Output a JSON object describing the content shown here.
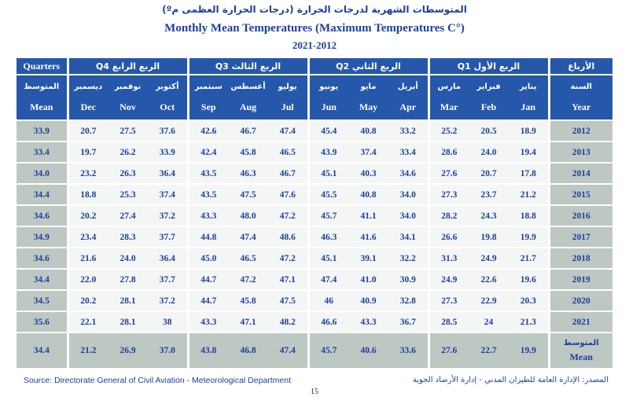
{
  "titles": {
    "arabic": "المتوسطات الشهرية لدرجات الحرارة (درجات الحرارة العظمى مº)",
    "english": "Monthly Mean Temperatures (Maximum Temperatures C°)",
    "period": "2021-2012"
  },
  "colors": {
    "header_blue": "#2557ab",
    "text_navy": "#1d3f9e",
    "gray_column_bg": "#bdc8c3",
    "data_cell_bg": "#f3f6f4"
  },
  "table": {
    "corner_label": "Quarters",
    "corner_label_ar": "الأرباع",
    "mean_col": {
      "ar": "المتوسط",
      "en": "Mean"
    },
    "year_col": {
      "ar": "السنة",
      "en": "Year"
    },
    "quarter_groups": [
      {
        "id": "q4",
        "en": "Q4",
        "ar": "الربع الرابع",
        "months": [
          {
            "en": "Dec",
            "ar": "ديسمبر"
          },
          {
            "en": "Nov",
            "ar": "نوفمبر"
          },
          {
            "en": "Oct",
            "ar": "أكتوبر"
          }
        ]
      },
      {
        "id": "q3",
        "en": "Q3",
        "ar": "الربع الثالث",
        "months": [
          {
            "en": "Sep",
            "ar": "سبتمبر"
          },
          {
            "en": "Aug",
            "ar": "أغسطس"
          },
          {
            "en": "Jul",
            "ar": "يوليو"
          }
        ]
      },
      {
        "id": "q2",
        "en": "Q2",
        "ar": "الربع الثاني",
        "months": [
          {
            "en": "Jun",
            "ar": "يونيو"
          },
          {
            "en": "May",
            "ar": "مايو"
          },
          {
            "en": "Apr",
            "ar": "أبريل"
          }
        ]
      },
      {
        "id": "q1",
        "en": "Q1",
        "ar": "الربع الأول",
        "months": [
          {
            "en": "Mar",
            "ar": "مارس"
          },
          {
            "en": "Feb",
            "ar": "فبراير"
          },
          {
            "en": "Jan",
            "ar": "يناير"
          }
        ]
      }
    ],
    "rows": [
      {
        "year": "2012",
        "mean": "33.9",
        "values": [
          "20.7",
          "27.5",
          "37.6",
          "42.6",
          "46.7",
          "47.4",
          "45.4",
          "40.8",
          "33.2",
          "25.2",
          "20.5",
          "18.9"
        ]
      },
      {
        "year": "2013",
        "mean": "33.4",
        "values": [
          "19.7",
          "26.2",
          "33.9",
          "42.4",
          "45.8",
          "46.5",
          "43.9",
          "37.4",
          "33.4",
          "28.6",
          "24.0",
          "19.4"
        ]
      },
      {
        "year": "2014",
        "mean": "34.0",
        "values": [
          "23.2",
          "26.3",
          "36.4",
          "43.5",
          "46.3",
          "46.7",
          "45.1",
          "40.3",
          "34.6",
          "27.6",
          "20.7",
          "17.8"
        ]
      },
      {
        "year": "2015",
        "mean": "34.4",
        "values": [
          "18.8",
          "25.3",
          "37.4",
          "43.5",
          "47.5",
          "47.6",
          "45.5",
          "40.8",
          "34.0",
          "27.3",
          "23.7",
          "21.2"
        ]
      },
      {
        "year": "2016",
        "mean": "34.6",
        "values": [
          "20.2",
          "27.4",
          "37.2",
          "43.3",
          "48.0",
          "47.2",
          "45.7",
          "41.1",
          "34.0",
          "28.2",
          "24.3",
          "18.8"
        ]
      },
      {
        "year": "2017",
        "mean": "34.9",
        "values": [
          "23.4",
          "28.3",
          "37.7",
          "44.8",
          "47.4",
          "48.6",
          "46.3",
          "41.6",
          "34.1",
          "26.6",
          "19.8",
          "19.9"
        ]
      },
      {
        "year": "2018",
        "mean": "34.6",
        "values": [
          "21.6",
          "24.0",
          "36.4",
          "45.0",
          "46.5",
          "47.2",
          "45.1",
          "39.1",
          "32.2",
          "31.3",
          "24.9",
          "21.7"
        ]
      },
      {
        "year": "2019",
        "mean": "34.4",
        "values": [
          "22.0",
          "27.8",
          "37.7",
          "44.7",
          "47.2",
          "47.1",
          "47.4",
          "41.0",
          "30.9",
          "24.9",
          "22.6",
          "19.6"
        ]
      },
      {
        "year": "2020",
        "mean": "34.5",
        "values": [
          "20.2",
          "28.1",
          "37.2",
          "44.7",
          "45.8",
          "47.5",
          "46",
          "40.9",
          "32.8",
          "27.3",
          "22.9",
          "20.3"
        ]
      },
      {
        "year": "2021",
        "mean": "35.6",
        "values": [
          "22.1",
          "28.1",
          "38",
          "43.3",
          "47.1",
          "48.2",
          "46.6",
          "43.3",
          "36.7",
          "28.5",
          "24",
          "21.3"
        ]
      }
    ],
    "mean_row": {
      "label_ar": "المتوسط",
      "label_en": "Mean",
      "mean": "34.4",
      "values": [
        "21.2",
        "26.9",
        "37.0",
        "43.8",
        "46.8",
        "47.4",
        "45.7",
        "40.6",
        "33.6",
        "27.6",
        "22.7",
        "19.9"
      ]
    }
  },
  "footer": {
    "source_en": "Source: Directorate General of Civil Aviation - Meteorological Department",
    "source_ar": "المصدر: الإدارة العامة للطيران المدني - إدارة الأرصاد الجوية",
    "page_number": "15"
  }
}
